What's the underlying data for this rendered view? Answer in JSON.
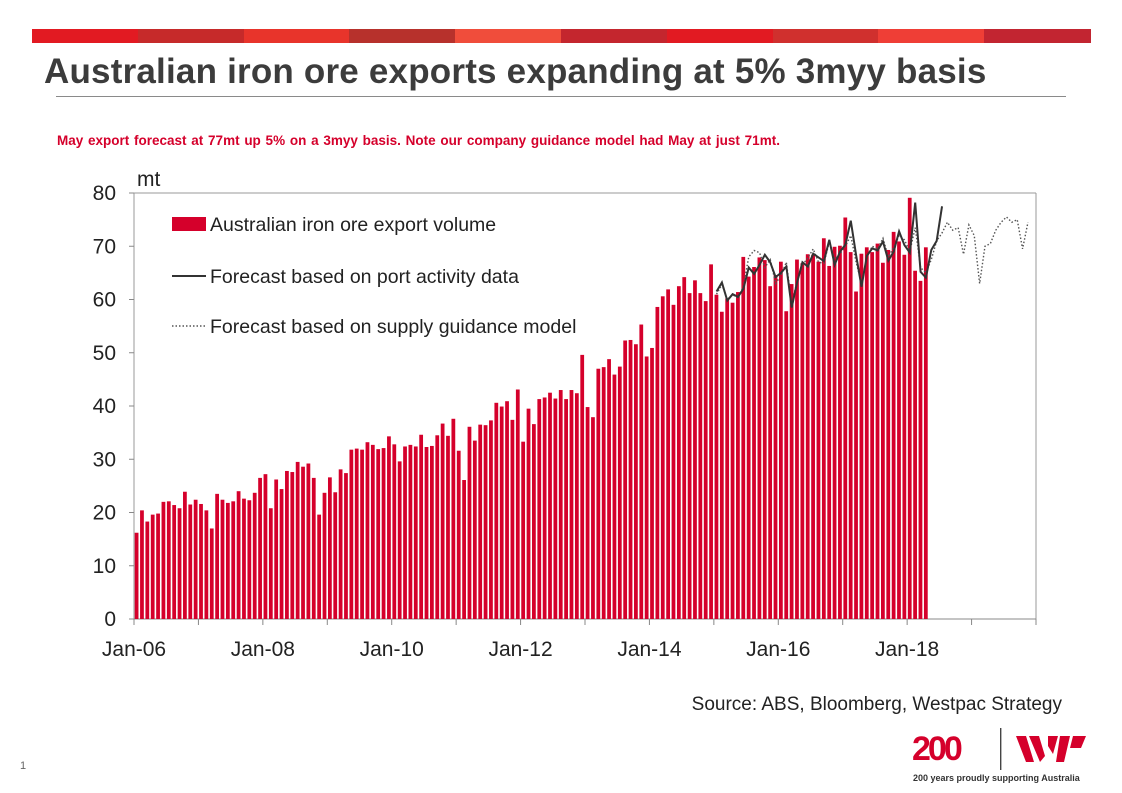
{
  "slide": {
    "title": "Australian iron ore exports expanding at 5% 3myy basis",
    "subtitle": "May export forecast at 77mt up 5% on a 3myy basis. Note our company  guidance  model  had  May at just 71mt.",
    "source": "Source: ABS, Bloomberg,  Westpac Strategy",
    "page_number": "1",
    "brand": {
      "logo_text": "200",
      "tagline": "200 years proudly supporting Australia"
    }
  },
  "colors": {
    "bar": "#d5002b",
    "accent": "#d5002b",
    "line": "#333333",
    "band": [
      "#e21a22",
      "#c62a2a",
      "#e8342b",
      "#b7312c",
      "#f04d3b",
      "#c4262e",
      "#e21a22",
      "#d0302e",
      "#ef3e36",
      "#c22531"
    ]
  },
  "chart_data": {
    "type": "bar",
    "unit_label": "mt",
    "ylim": [
      0,
      80
    ],
    "yticks": [
      0,
      10,
      20,
      30,
      40,
      50,
      60,
      70,
      80
    ],
    "xticks": [
      "Jan-06",
      "Jan-08",
      "Jan-10",
      "Jan-12",
      "Jan-14",
      "Jan-16",
      "Jan-18"
    ],
    "x_start": "Jan-06",
    "x_end": "Dec-19",
    "legend": [
      {
        "key": "bars",
        "label": "Australian iron ore export volume"
      },
      {
        "key": "port",
        "label": "Forecast based on port activity data"
      },
      {
        "key": "guidance",
        "label": "Forecast based on supply guidance model"
      }
    ],
    "series": [
      {
        "name": "Australian iron ore export volume",
        "start": "Jan-06",
        "values": [
          16.2,
          20.4,
          18.3,
          19.6,
          19.8,
          22.0,
          22.1,
          21.4,
          20.8,
          23.9,
          21.5,
          22.4,
          21.6,
          20.4,
          17.0,
          23.5,
          22.4,
          21.8,
          22.1,
          24.0,
          22.6,
          22.3,
          23.7,
          26.5,
          27.2,
          20.8,
          26.2,
          24.4,
          27.8,
          27.6,
          29.5,
          28.6,
          29.2,
          26.5,
          19.6,
          23.7,
          26.6,
          23.8,
          28.1,
          27.4,
          31.8,
          32.0,
          31.8,
          33.2,
          32.7,
          31.9,
          32.1,
          34.3,
          32.8,
          29.6,
          32.4,
          32.7,
          32.4,
          34.6,
          32.3,
          32.5,
          34.5,
          36.7,
          34.4,
          37.6,
          31.6,
          26.1,
          36.1,
          33.5,
          36.5,
          36.4,
          37.3,
          40.6,
          39.9,
          40.9,
          37.4,
          43.1,
          33.3,
          39.5,
          36.6,
          41.3,
          41.6,
          42.5,
          41.4,
          43.0,
          41.3,
          43.0,
          42.4,
          49.6,
          39.8,
          37.9,
          47.0,
          47.3,
          48.8,
          45.9,
          47.4,
          52.3,
          52.4,
          51.6,
          55.3,
          49.3,
          50.9,
          58.6,
          60.6,
          61.9,
          59.0,
          62.5,
          64.2,
          61.2,
          63.6,
          61.2,
          59.7,
          66.6,
          60.9,
          57.7,
          60.2,
          59.4,
          61.4,
          68.0,
          64.3,
          66.1,
          67.9,
          67.4,
          62.5,
          64.6,
          67.1,
          57.8,
          62.9,
          67.5,
          66.8,
          68.5,
          68.4,
          67.1,
          71.5,
          66.3,
          69.9,
          70.1,
          75.4,
          68.9,
          61.5,
          68.6,
          69.8,
          68.9,
          70.5,
          66.9,
          69.3,
          72.7,
          70.9,
          68.4,
          79.1,
          65.4,
          63.5,
          69.8
        ]
      },
      {
        "name": "Forecast based on port activity data",
        "start": "Jan-15",
        "values": [
          61.5,
          63.2,
          59.8,
          61.0,
          60.5,
          62.0,
          66.0,
          64.8,
          66.5,
          68.4,
          67.0,
          64.2,
          65.0,
          66.2,
          58.5,
          63.2,
          67.0,
          66.2,
          68.6,
          67.9,
          67.2,
          71.2,
          66.5,
          69.0,
          70.3,
          74.8,
          68.3,
          62.4,
          68.2,
          69.6,
          69.2,
          70.9,
          67.3,
          69.0,
          72.8,
          70.2,
          68.8,
          78.2,
          65.2,
          64.1,
          69.3,
          71.0,
          77.5
        ]
      },
      {
        "name": "Forecast based on supply guidance model",
        "start": "Jan-15",
        "values": [
          61.0,
          62.8,
          60.0,
          60.9,
          60.3,
          62.5,
          68.0,
          69.2,
          68.8,
          66.0,
          67.5,
          63.0,
          64.5,
          67.0,
          59.0,
          63.5,
          66.5,
          67.8,
          69.5,
          67.0,
          66.8,
          70.8,
          67.6,
          68.6,
          70.0,
          72.0,
          67.0,
          63.0,
          68.0,
          70.0,
          69.5,
          71.5,
          68.0,
          69.8,
          72.0,
          71.2,
          69.0,
          73.5,
          66.0,
          65.0,
          67.5,
          71.0,
          72.5,
          74.5,
          73.0,
          73.5,
          68.5,
          74.0,
          72.0,
          63.0,
          70.0,
          70.5,
          73.0,
          74.5,
          75.5,
          74.5,
          75.0,
          69.5,
          74.5
        ]
      }
    ]
  }
}
